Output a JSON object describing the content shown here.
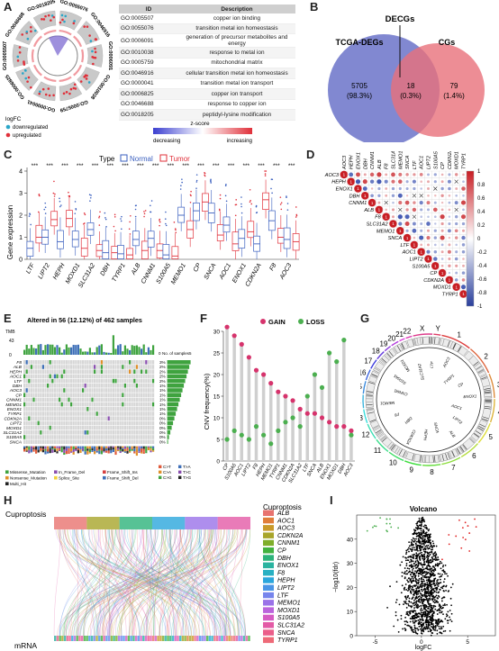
{
  "panel_labels": [
    "A",
    "B",
    "C",
    "D",
    "E",
    "F",
    "G",
    "H",
    "I"
  ],
  "panelA": {
    "ring_labels": [
      "GO:0055076",
      "GO:0046916",
      "GO:0006091",
      "GO:0010038",
      "GO:0005759",
      "GO:0000041",
      "GO:0006825",
      "GO:0005507",
      "GO:0046688",
      "GO:0018205"
    ],
    "legend": {
      "logfc_title": "logFC",
      "down": "downregulated",
      "up": "upregulated",
      "z_title": "z-score",
      "z_low": "decreasing",
      "z_high": "increasing"
    },
    "table": {
      "headers": [
        "ID",
        "Description"
      ],
      "rows": [
        [
          "GO:0005507",
          "copper ion binding"
        ],
        [
          "GO:0055076",
          "transition metal ion homeostasis"
        ],
        [
          "GO:0006091",
          "generation of precursor metabolites and energy"
        ],
        [
          "GO:0010038",
          "response to metal ion"
        ],
        [
          "GO:0005759",
          "mitochondrial matrix"
        ],
        [
          "GO:0046916",
          "cellular transition metal ion homeostasis"
        ],
        [
          "GO:0000041",
          "transition metal ion transport"
        ],
        [
          "GO:0006825",
          "copper ion transport"
        ],
        [
          "GO:0046688",
          "response to copper ion"
        ],
        [
          "GO:0018205",
          "peptidyl-lysine modification"
        ]
      ]
    }
  },
  "panelB": {
    "title": "DECGs",
    "left_label": "TCGA-DEGs",
    "right_label": "CGs",
    "left_count": "5705",
    "left_pct": "(98.3%)",
    "mid_count": "18",
    "mid_pct": "(0.3%)",
    "right_count": "79",
    "right_pct": "(1.4%)",
    "colors": {
      "left": "#6b73c9",
      "right": "#e8707a"
    }
  },
  "panelC": {
    "legend_title": "Type",
    "legend_normal": "Normal",
    "legend_tumor": "Tumor",
    "sig_mark": "***",
    "chart_data": {
      "type": "box",
      "ylabel": "Gene expression",
      "ylim": [
        0,
        4
      ],
      "yticks": [
        "0",
        "1",
        "2",
        "3",
        "4"
      ],
      "categories": [
        "LTF",
        "LIPT2",
        "HEPH",
        "MOXD1",
        "SLC31A2",
        "DBH",
        "TYRP1",
        "ALB",
        "CNNM1",
        "S100A5",
        "MEMO1",
        "CP",
        "SNCA",
        "AOC1",
        "ENOX1",
        "CDKN2A",
        "F8",
        "AOC3"
      ],
      "series": [
        {
          "name": "Normal",
          "color": "#3a5fbf",
          "medians": [
            0.5,
            1.0,
            0.8,
            0.9,
            1.35,
            0.3,
            0.25,
            0.9,
            0.95,
            0.2,
            2.0,
            2.2,
            2.1,
            1.55,
            0.95,
            0.7,
            1.75,
            0.9
          ]
        },
        {
          "name": "Tumor",
          "color": "#e0303a",
          "medians": [
            1.0,
            1.8,
            1.85,
            0.5,
            0.4,
            0.3,
            0.2,
            0.4,
            0.4,
            0.15,
            1.35,
            2.6,
            1.1,
            0.7,
            1.25,
            2.7,
            1.0,
            0.8
          ]
        }
      ]
    }
  },
  "panelD": {
    "genes": [
      "AOC3",
      "HEPH",
      "ENOX1",
      "DBH",
      "CNNM1",
      "ALB",
      "F8",
      "SLC31A2",
      "MEMO1",
      "SNCA",
      "LTF",
      "AOC1",
      "LIPT2",
      "S100A5",
      "CP",
      "CDKN2A",
      "MOXD1",
      "TYRP1"
    ],
    "scale_ticks": [
      "1",
      "0.8",
      "0.6",
      "0.4",
      "0.2",
      "0",
      "-0.2",
      "-0.4",
      "-0.6",
      "-0.8",
      "-1"
    ],
    "diag_value": "1"
  },
  "panelE": {
    "title": "Altered in 56 (12.12%) of 462 samples",
    "tmb_label": "TMB",
    "tmb_ticks": [
      "43",
      "0"
    ],
    "no_samples_label": "No. of samples",
    "no_samples_ticks": [
      "0",
      "5"
    ],
    "genes": [
      "F8",
      "ALB",
      "HEPH",
      "AOC1",
      "LTF",
      "DBH",
      "AOC3",
      "CP",
      "CNNM1",
      "MEMO1",
      "ENOX1",
      "TYRP1",
      "CDKN2A",
      "LIPT2",
      "MOXD1",
      "SLC31A2",
      "S100A5",
      "SNCA"
    ],
    "percents": [
      "3%",
      "2%",
      "2%",
      "2%",
      "2%",
      "1%",
      "1%",
      "1%",
      "1%",
      "1%",
      "1%",
      "1%",
      "0%",
      "0%",
      "0%",
      "0%",
      "0%",
      "0%"
    ],
    "legend": [
      "Missense_Mutation",
      "In_Frame_Del",
      "Frame_Shift_Ins",
      "Nonsense_Mutation",
      "Splice_Site",
      "Frame_Shift_Del",
      "Multi_Hit"
    ],
    "legend_colors": [
      "#3fa33f",
      "#8a4fb0",
      "#d64040",
      "#e0902a",
      "#f2d23a",
      "#3e6fb8",
      "#222222"
    ],
    "snv_labels": [
      "C>T",
      "T>A",
      "C>A",
      "T>C",
      "C>G",
      "T>G"
    ]
  },
  "panelF": {
    "legend_gain": "GAIN",
    "legend_loss": "LOSS",
    "chart_data": {
      "type": "lollipop",
      "ylabel": "CNV frequency(%)",
      "ylim": [
        0,
        30
      ],
      "yticks": [
        "0",
        "5",
        "10",
        "15",
        "20",
        "25",
        "30"
      ],
      "categories": [
        "CP",
        "S100A5",
        "AOC1",
        "LIPT2",
        "F8",
        "HEPH",
        "MEMO1",
        "TYRP1",
        "CNNM1",
        "CDKN2A",
        "SLC31A2",
        "LTF",
        "SNCA",
        "ALB",
        "ENOX1",
        "MOXD1",
        "DBH",
        "AOC3"
      ],
      "series": [
        {
          "name": "GAIN",
          "color": "#d6336c",
          "values": [
            31,
            29,
            27,
            24,
            21,
            20,
            18,
            16,
            15,
            14,
            12,
            11,
            11,
            10,
            9,
            8,
            8,
            7
          ]
        },
        {
          "name": "LOSS",
          "color": "#4caf50",
          "values": [
            5,
            7,
            6,
            5,
            8,
            6,
            4,
            7,
            9,
            10,
            8,
            15,
            20,
            17,
            25,
            23,
            28,
            6
          ]
        }
      ]
    }
  },
  "panelG": {
    "chromosomes": [
      "1",
      "2",
      "3",
      "4",
      "5",
      "6",
      "7",
      "8",
      "9",
      "10",
      "11",
      "12",
      "13",
      "14",
      "15",
      "16",
      "17",
      "18",
      "19",
      "20",
      "21",
      "22",
      "X",
      "Y"
    ],
    "genes": [
      "AOC1",
      "LIPT2",
      "ALB",
      "SNCA",
      "HEPH",
      "CDKN2A",
      "DBH",
      "F8",
      "MEMO1",
      "CNNM1",
      "S100A5",
      "MOXD1",
      "SLC31A2",
      "LTF",
      "AOC3",
      "TYRP1",
      "CP",
      "ENOX1"
    ]
  },
  "panelH": {
    "left_top": "Cuproptosis",
    "left_bottom": "mRNA",
    "legend_title": "Cuproptosis",
    "legend_items": [
      "ALB",
      "AOC1",
      "AOC3",
      "CDKN2A",
      "CNNM1",
      "CP",
      "DBH",
      "ENOX1",
      "F8",
      "HEPH",
      "LIPT2",
      "LTF",
      "MEMO1",
      "MOXD1",
      "S100A5",
      "SLC31A2",
      "SNCA",
      "TYRP1"
    ],
    "legend_colors": [
      "#e8736f",
      "#e07e3a",
      "#c99a2a",
      "#a8a52a",
      "#7fae2a",
      "#42b23f",
      "#2db37a",
      "#2ab3a0",
      "#28b0c2",
      "#2aa6dc",
      "#4a95e6",
      "#7684ec",
      "#9a72e8",
      "#bb64dc",
      "#d55cc4",
      "#e35aa6",
      "#eb5e8a",
      "#ee6a78"
    ]
  },
  "panelI": {
    "title": "Volcano",
    "chart_data": {
      "type": "scatter",
      "xlabel": "logFC",
      "ylabel": "−log10(fdr)",
      "xlim": [
        -7,
        8
      ],
      "ylim": [
        0,
        50
      ],
      "xticks": [
        "-5",
        "0",
        "5"
      ],
      "yticks": [
        "0",
        "10",
        "20",
        "30",
        "40"
      ],
      "series": [
        {
          "name": "down",
          "color": "#4caf50"
        },
        {
          "name": "not significant",
          "color": "#000000"
        },
        {
          "name": "up",
          "color": "#e02020"
        }
      ]
    }
  }
}
